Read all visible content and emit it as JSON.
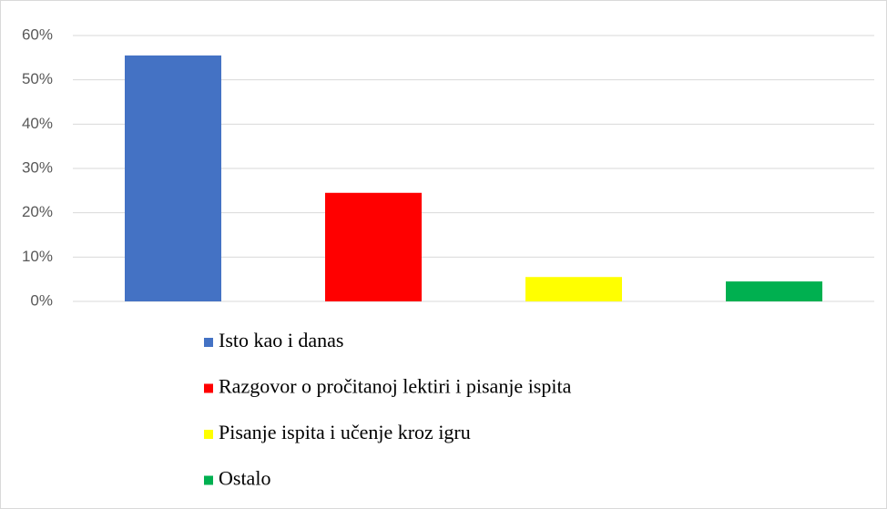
{
  "chart_data": {
    "type": "bar",
    "categories": [
      "Isto kao i danas",
      "Razgovor o pročitanoj lektiri i pisanje ispita",
      "Pisanje ispita i učenje kroz igru",
      "Ostalo"
    ],
    "values": [
      55.5,
      24.5,
      5.5,
      4.5
    ],
    "colors": [
      "#4472c4",
      "#ff0000",
      "#ffff00",
      "#00b050"
    ],
    "ylim": [
      0,
      60
    ],
    "yticks": [
      {
        "value": 0,
        "label": "0%"
      },
      {
        "value": 10,
        "label": "10%"
      },
      {
        "value": 20,
        "label": "20%"
      },
      {
        "value": 30,
        "label": "30%"
      },
      {
        "value": 40,
        "label": "40%"
      },
      {
        "value": 50,
        "label": "50%"
      },
      {
        "value": 60,
        "label": "60%"
      }
    ],
    "grid": true,
    "legend": "bottom"
  }
}
